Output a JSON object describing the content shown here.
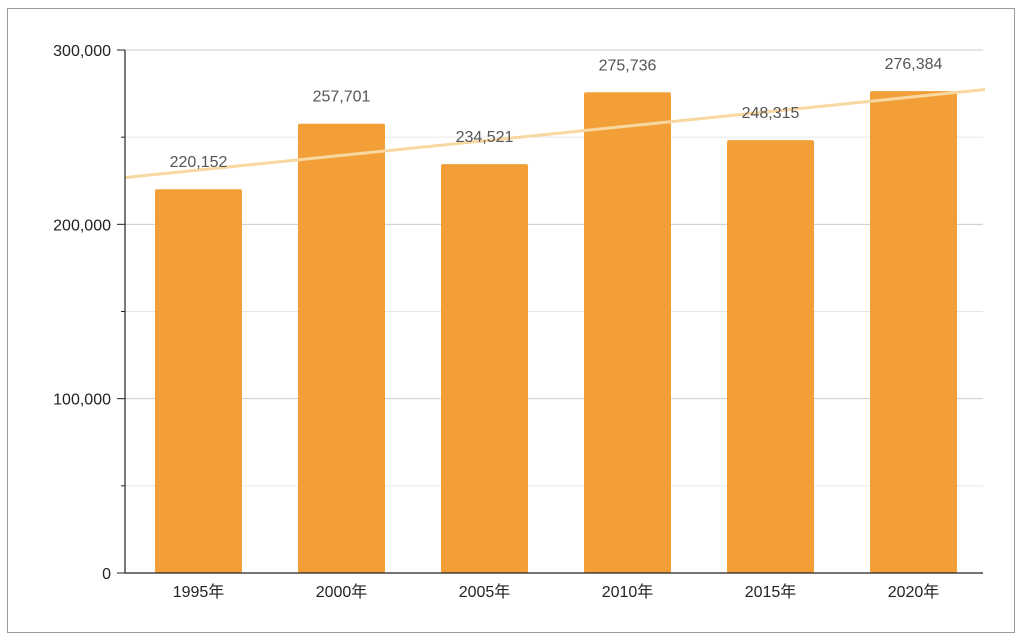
{
  "chart_data": {
    "type": "bar",
    "categories": [
      "1995年",
      "2000年",
      "2005年",
      "2010年",
      "2015年",
      "2020年"
    ],
    "values": [
      220152,
      257701,
      234521,
      275736,
      248315,
      276384
    ],
    "data_labels": [
      "220,152",
      "257,701",
      "234,521",
      "275,736",
      "248,315",
      "276,384"
    ],
    "y_ticks": [
      {
        "value": 0,
        "label": "0"
      },
      {
        "value": 100000,
        "label": "100,000"
      },
      {
        "value": 200000,
        "label": "200,000"
      },
      {
        "value": 300000,
        "label": "300,000"
      }
    ],
    "y_minor_ticks": [
      50000,
      150000,
      250000
    ],
    "ylim": [
      0,
      300000
    ],
    "title": "",
    "xlabel": "",
    "ylabel": "",
    "grid": true,
    "legend": "none",
    "trendline": {
      "type": "linear"
    },
    "colors": {
      "bar": "#f29f38",
      "trend": "#f8d7a0",
      "grid_major": "#cccccc",
      "grid_minor": "#e6e6e6",
      "axis": "#222222"
    }
  }
}
